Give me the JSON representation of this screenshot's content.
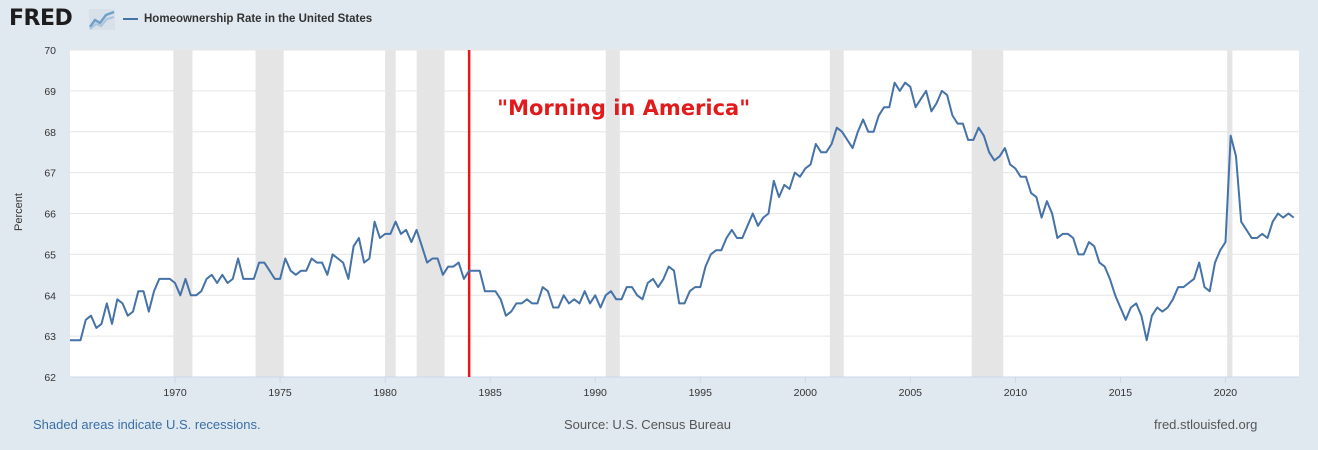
{
  "header": {
    "logo_text": "FRED",
    "logo_mark_icon": "chart-line-icon",
    "legend_label": "Homeownership Rate in the United States"
  },
  "footer": {
    "note": "Shaded areas indicate U.S. recessions.",
    "source": "Source: U.S. Census Bureau",
    "site": "fred.stlouisfed.org"
  },
  "colors": {
    "series": "#4572a7",
    "recession": "#e5e5e5",
    "annotation": "#e31a1c",
    "grid": "#e6e6e6"
  },
  "chart_data": {
    "type": "line",
    "title": "",
    "xlabel": "",
    "ylabel": "Percent",
    "xlim": [
      1965.0,
      2023.5
    ],
    "ylim": [
      62,
      70
    ],
    "x_ticks": [
      1970,
      1975,
      1980,
      1985,
      1990,
      1995,
      2000,
      2005,
      2010,
      2015,
      2020
    ],
    "y_ticks": [
      62,
      63,
      64,
      65,
      66,
      67,
      68,
      69,
      70
    ],
    "grid": true,
    "legend_position": "top-left",
    "series": [
      {
        "name": "Homeownership Rate in the United States",
        "x": [
          1965.0,
          1965.25,
          1965.5,
          1965.75,
          1966.0,
          1966.25,
          1966.5,
          1966.75,
          1967.0,
          1967.25,
          1967.5,
          1967.75,
          1968.0,
          1968.25,
          1968.5,
          1968.75,
          1969.0,
          1969.25,
          1969.5,
          1969.75,
          1970.0,
          1970.25,
          1970.5,
          1970.75,
          1971.0,
          1971.25,
          1971.5,
          1971.75,
          1972.0,
          1972.25,
          1972.5,
          1972.75,
          1973.0,
          1973.25,
          1973.5,
          1973.75,
          1974.0,
          1974.25,
          1974.5,
          1974.75,
          1975.0,
          1975.25,
          1975.5,
          1975.75,
          1976.0,
          1976.25,
          1976.5,
          1976.75,
          1977.0,
          1977.25,
          1977.5,
          1977.75,
          1978.0,
          1978.25,
          1978.5,
          1978.75,
          1979.0,
          1979.25,
          1979.5,
          1979.75,
          1980.0,
          1980.25,
          1980.5,
          1980.75,
          1981.0,
          1981.25,
          1981.5,
          1981.75,
          1982.0,
          1982.25,
          1982.5,
          1982.75,
          1983.0,
          1983.25,
          1983.5,
          1983.75,
          1984.0,
          1984.25,
          1984.5,
          1984.75,
          1985.0,
          1985.25,
          1985.5,
          1985.75,
          1986.0,
          1986.25,
          1986.5,
          1986.75,
          1987.0,
          1987.25,
          1987.5,
          1987.75,
          1988.0,
          1988.25,
          1988.5,
          1988.75,
          1989.0,
          1989.25,
          1989.5,
          1989.75,
          1990.0,
          1990.25,
          1990.5,
          1990.75,
          1991.0,
          1991.25,
          1991.5,
          1991.75,
          1992.0,
          1992.25,
          1992.5,
          1992.75,
          1993.0,
          1993.25,
          1993.5,
          1993.75,
          1994.0,
          1994.25,
          1994.5,
          1994.75,
          1995.0,
          1995.25,
          1995.5,
          1995.75,
          1996.0,
          1996.25,
          1996.5,
          1996.75,
          1997.0,
          1997.25,
          1997.5,
          1997.75,
          1998.0,
          1998.25,
          1998.5,
          1998.75,
          1999.0,
          1999.25,
          1999.5,
          1999.75,
          2000.0,
          2000.25,
          2000.5,
          2000.75,
          2001.0,
          2001.25,
          2001.5,
          2001.75,
          2002.0,
          2002.25,
          2002.5,
          2002.75,
          2003.0,
          2003.25,
          2003.5,
          2003.75,
          2004.0,
          2004.25,
          2004.5,
          2004.75,
          2005.0,
          2005.25,
          2005.5,
          2005.75,
          2006.0,
          2006.25,
          2006.5,
          2006.75,
          2007.0,
          2007.25,
          2007.5,
          2007.75,
          2008.0,
          2008.25,
          2008.5,
          2008.75,
          2009.0,
          2009.25,
          2009.5,
          2009.75,
          2010.0,
          2010.25,
          2010.5,
          2010.75,
          2011.0,
          2011.25,
          2011.5,
          2011.75,
          2012.0,
          2012.25,
          2012.5,
          2012.75,
          2013.0,
          2013.25,
          2013.5,
          2013.75,
          2014.0,
          2014.25,
          2014.5,
          2014.75,
          2015.0,
          2015.25,
          2015.5,
          2015.75,
          2016.0,
          2016.25,
          2016.5,
          2016.75,
          2017.0,
          2017.25,
          2017.5,
          2017.75,
          2018.0,
          2018.25,
          2018.5,
          2018.75,
          2019.0,
          2019.25,
          2019.5,
          2019.75,
          2020.0,
          2020.25,
          2020.5,
          2020.75,
          2021.0,
          2021.25,
          2021.5,
          2021.75,
          2022.0,
          2022.25,
          2022.5,
          2022.75,
          2023.0,
          2023.25
        ],
        "values": [
          62.9,
          62.9,
          62.9,
          63.4,
          63.5,
          63.2,
          63.3,
          63.8,
          63.3,
          63.9,
          63.8,
          63.5,
          63.6,
          64.1,
          64.1,
          63.6,
          64.1,
          64.4,
          64.4,
          64.4,
          64.3,
          64.0,
          64.4,
          64.0,
          64.0,
          64.1,
          64.4,
          64.5,
          64.3,
          64.5,
          64.3,
          64.4,
          64.9,
          64.4,
          64.4,
          64.4,
          64.8,
          64.8,
          64.6,
          64.4,
          64.4,
          64.9,
          64.6,
          64.5,
          64.6,
          64.6,
          64.9,
          64.8,
          64.8,
          64.5,
          65.0,
          64.9,
          64.8,
          64.4,
          65.2,
          65.4,
          64.8,
          64.9,
          65.8,
          65.4,
          65.5,
          65.5,
          65.8,
          65.5,
          65.6,
          65.3,
          65.6,
          65.2,
          64.8,
          64.9,
          64.9,
          64.5,
          64.7,
          64.7,
          64.8,
          64.4,
          64.6,
          64.6,
          64.6,
          64.1,
          64.1,
          64.1,
          63.9,
          63.5,
          63.6,
          63.8,
          63.8,
          63.9,
          63.8,
          63.8,
          64.2,
          64.1,
          63.7,
          63.7,
          64.0,
          63.8,
          63.9,
          63.8,
          64.1,
          63.8,
          64.0,
          63.7,
          64.0,
          64.1,
          63.9,
          63.9,
          64.2,
          64.2,
          64.0,
          63.9,
          64.3,
          64.4,
          64.2,
          64.4,
          64.7,
          64.6,
          63.8,
          63.8,
          64.1,
          64.2,
          64.2,
          64.7,
          65.0,
          65.1,
          65.1,
          65.4,
          65.6,
          65.4,
          65.4,
          65.7,
          66.0,
          65.7,
          65.9,
          66.0,
          66.8,
          66.4,
          66.7,
          66.6,
          67.0,
          66.9,
          67.1,
          67.2,
          67.7,
          67.5,
          67.5,
          67.7,
          68.1,
          68.0,
          67.8,
          67.6,
          68.0,
          68.3,
          68.0,
          68.0,
          68.4,
          68.6,
          68.6,
          69.2,
          69.0,
          69.2,
          69.1,
          68.6,
          68.8,
          69.0,
          68.5,
          68.7,
          69.0,
          68.9,
          68.4,
          68.2,
          68.2,
          67.8,
          67.8,
          68.1,
          67.9,
          67.5,
          67.3,
          67.4,
          67.6,
          67.2,
          67.1,
          66.9,
          66.9,
          66.5,
          66.4,
          65.9,
          66.3,
          66.0,
          65.4,
          65.5,
          65.5,
          65.4,
          65.0,
          65.0,
          65.3,
          65.2,
          64.8,
          64.7,
          64.4,
          64.0,
          63.7,
          63.4,
          63.7,
          63.8,
          63.5,
          62.9,
          63.5,
          63.7,
          63.6,
          63.7,
          63.9,
          64.2,
          64.2,
          64.3,
          64.4,
          64.8,
          64.2,
          64.1,
          64.8,
          65.1,
          65.3,
          67.9,
          67.4,
          65.8,
          65.6,
          65.4,
          65.4,
          65.5,
          65.4,
          65.8,
          66.0,
          65.9,
          66.0,
          65.9
        ]
      }
    ],
    "recessions": [
      [
        1969.92,
        1970.83
      ],
      [
        1973.83,
        1975.17
      ],
      [
        1980.0,
        1980.5
      ],
      [
        1981.5,
        1982.83
      ],
      [
        1990.5,
        1991.17
      ],
      [
        2001.17,
        2001.83
      ],
      [
        2007.92,
        2009.42
      ],
      [
        2020.08,
        2020.33
      ]
    ],
    "annotations": [
      {
        "x": 1984.0,
        "label": "\"Morning in America\"",
        "label_y": 68.6
      }
    ]
  }
}
